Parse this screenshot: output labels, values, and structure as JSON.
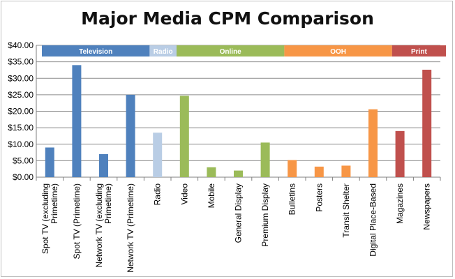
{
  "chart_data": {
    "type": "bar",
    "title": "Major Media CPM Comparison",
    "xlabel": "",
    "ylabel": "",
    "ylim": [
      0,
      40
    ],
    "y_ticks": [
      "$0.00",
      "$5.00",
      "$10.00",
      "$15.00",
      "$20.00",
      "$25.00",
      "$30.00",
      "$35.00",
      "$40.00"
    ],
    "grid": true,
    "legend": "none",
    "categories": [
      "Spot TV (excluding Primetime)",
      "Spot TV (Primetime)",
      "Network TV (excluding Primetime)",
      "Network TV (Primetime)",
      "Radio",
      "Video",
      "Mobile",
      "General Display",
      "Premium Display",
      "Bulletins",
      "Posters",
      "Transit Shelter",
      "Digital Place-Based",
      "Magazines",
      "Newspapers"
    ],
    "values": [
      9.0,
      34.0,
      7.0,
      25.0,
      13.5,
      24.7,
      3.0,
      2.0,
      10.5,
      5.2,
      3.2,
      3.5,
      20.6,
      14.0,
      32.6
    ],
    "groups": [
      {
        "name": "Television",
        "start": 0,
        "end": 3,
        "color": "#4f81bd"
      },
      {
        "name": "Radio",
        "start": 4,
        "end": 4,
        "color": "#b9cde5"
      },
      {
        "name": "Online",
        "start": 5,
        "end": 8,
        "color": "#9bbb59"
      },
      {
        "name": "OOH",
        "start": 9,
        "end": 12,
        "color": "#f79646"
      },
      {
        "name": "Print",
        "start": 13,
        "end": 14,
        "color": "#c0504d"
      }
    ]
  }
}
